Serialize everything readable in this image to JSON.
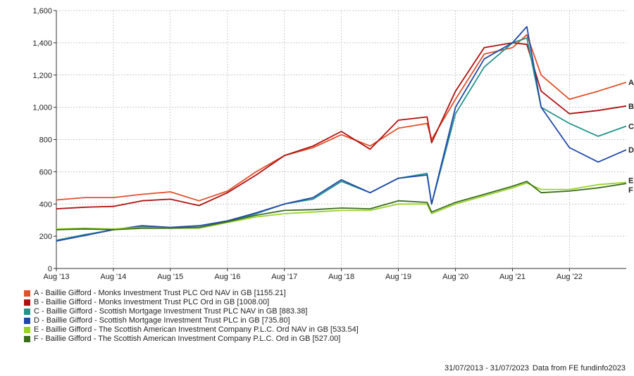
{
  "chart_data": {
    "type": "line",
    "ylim": [
      0,
      1600
    ],
    "yticks": [
      "0",
      "200",
      "400",
      "600",
      "800",
      "1,000",
      "1,200",
      "1,400",
      "1,600"
    ],
    "xticks": [
      "Aug '13",
      "Aug '14",
      "Aug '15",
      "Aug '16",
      "Aug '17",
      "Aug '18",
      "Aug '19",
      "Aug '20",
      "Aug '21",
      "Aug '22"
    ],
    "x": [
      "2013-08",
      "2014-02",
      "2014-08",
      "2015-02",
      "2015-08",
      "2016-02",
      "2016-08",
      "2017-02",
      "2017-08",
      "2018-02",
      "2018-08",
      "2019-02",
      "2019-08",
      "2020-02",
      "2020-03",
      "2020-08",
      "2021-02",
      "2021-08",
      "2021-11",
      "2022-02",
      "2022-08",
      "2023-02",
      "2023-07"
    ],
    "grid": true,
    "legend_position": "bottom",
    "series": [
      {
        "name": "A - Baillie Gifford - Monks Investment Trust PLC Ord NAV in GB [1155.21]",
        "end_label": "A",
        "color": "#e0502a",
        "values": [
          425,
          440,
          440,
          460,
          475,
          420,
          480,
          600,
          700,
          750,
          830,
          760,
          870,
          900,
          800,
          1050,
          1330,
          1370,
          1450,
          1200,
          1050,
          1100,
          1155
        ]
      },
      {
        "name": "B - Baillie Gifford - Monks Investment Trust PLC Ord in GB [1008.00]",
        "end_label": "B",
        "color": "#b01010",
        "values": [
          370,
          380,
          385,
          420,
          430,
          390,
          470,
          580,
          700,
          760,
          850,
          740,
          920,
          940,
          780,
          1100,
          1370,
          1400,
          1390,
          1100,
          960,
          980,
          1008
        ]
      },
      {
        "name": "C - Baillie Gifford - Scottish Mortgage Investment Trust PLC NAV in GB [883.38]",
        "end_label": "C",
        "color": "#23938a",
        "values": [
          175,
          210,
          240,
          260,
          250,
          255,
          290,
          340,
          400,
          430,
          540,
          470,
          560,
          590,
          400,
          960,
          1250,
          1400,
          1430,
          1000,
          900,
          820,
          883
        ]
      },
      {
        "name": "D - Baillie Gifford - Scottish Mortgage Investment Trust PLC in GB [735.80]",
        "end_label": "D",
        "color": "#2148a8",
        "values": [
          170,
          205,
          240,
          265,
          255,
          265,
          295,
          345,
          400,
          440,
          550,
          470,
          560,
          580,
          400,
          1000,
          1300,
          1400,
          1500,
          1000,
          750,
          660,
          736
        ]
      },
      {
        "name": "E - Baillie Gifford - The Scottish American Investment Company P.L.C. Ord NAV in GB [533.54]",
        "end_label": "E",
        "color": "#99d22a",
        "values": [
          245,
          250,
          245,
          255,
          250,
          250,
          285,
          320,
          340,
          350,
          360,
          360,
          400,
          400,
          340,
          400,
          450,
          500,
          530,
          490,
          490,
          520,
          534
        ]
      },
      {
        "name": "F - Baillie Gifford - The Scottish American Investment Company P.L.C. Ord in GB [527.00]",
        "end_label": "F",
        "color": "#3a6e1c",
        "values": [
          240,
          245,
          240,
          250,
          250,
          255,
          290,
          330,
          360,
          365,
          375,
          370,
          420,
          410,
          350,
          410,
          460,
          510,
          540,
          470,
          480,
          500,
          527
        ]
      }
    ]
  },
  "footer": {
    "date_range": "31/07/2013 - 31/07/2023",
    "source": "Data from FE fundinfo2023"
  }
}
